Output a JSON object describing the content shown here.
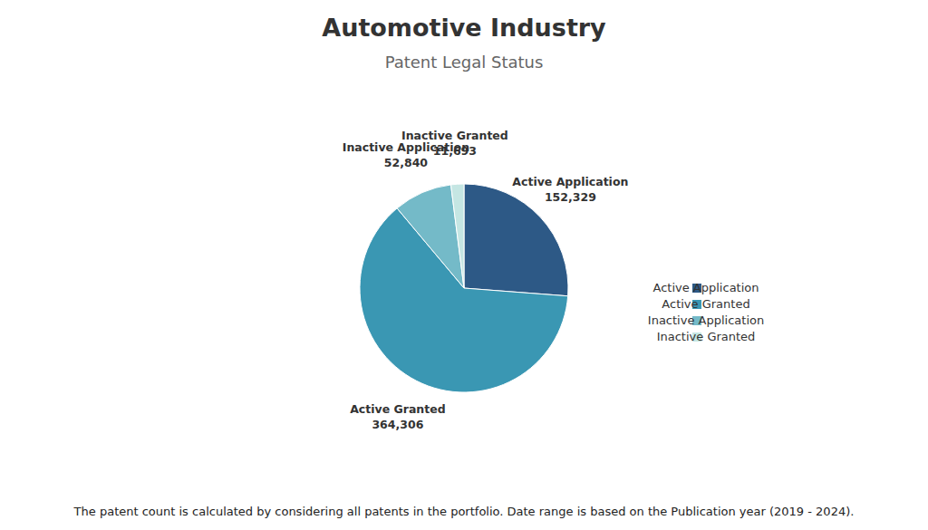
{
  "chart_data": {
    "type": "pie",
    "title": "Automotive Industry",
    "subtitle": "Patent Legal Status",
    "categories": [
      "Active Application",
      "Active Granted",
      "Inactive Application",
      "Inactive Granted"
    ],
    "values": [
      152329,
      364306,
      52840,
      11693
    ],
    "value_labels": [
      "152,329",
      "364,306",
      "52,840",
      "11,693"
    ],
    "colors": [
      "#2d5986",
      "#3a97b3",
      "#74bac8",
      "#c5e6e3"
    ],
    "data_labels": true,
    "legend": "right",
    "caption": "The patent count is calculated by considering all patents in the portfolio. Date range is based on the Publication year (2019 - 2024)."
  }
}
